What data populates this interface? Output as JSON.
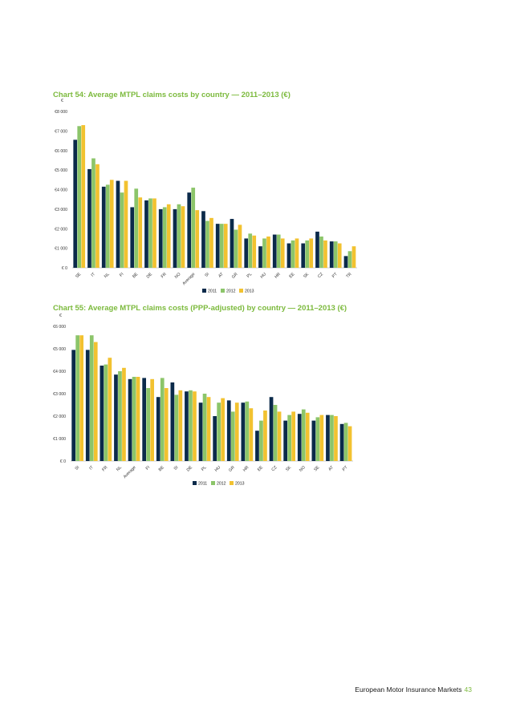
{
  "colors": {
    "y2011": "#0b2a4a",
    "y2012": "#8cc56a",
    "y2013": "#f2c230",
    "title": "#7cba3d"
  },
  "footer": {
    "text": "European Motor Insurance Markets",
    "page": "43"
  },
  "chart_data": [
    {
      "type": "bar",
      "title": "Chart 54: Average MTPL claims costs by country — 2011–2013 (€)",
      "ylabel": "€",
      "ylim": [
        0,
        8000
      ],
      "yticks": [
        0,
        1000,
        2000,
        3000,
        4000,
        5000,
        6000,
        7000,
        8000
      ],
      "ytick_labels": [
        "€ 0",
        "€1 000",
        "€2 000",
        "€3 000",
        "€4 000",
        "€5 000",
        "€6 000",
        "€7 000",
        "€8 000"
      ],
      "categories": [
        "SE",
        "IT",
        "NL",
        "FI",
        "BE",
        "DE",
        "FR",
        "NO",
        "Average",
        "SI",
        "AT",
        "GR",
        "PL",
        "HU",
        "HR",
        "EE",
        "SK",
        "CZ",
        "PT",
        "TR"
      ],
      "series": [
        {
          "name": "2011",
          "values": [
            6550,
            5050,
            4150,
            4450,
            3100,
            3450,
            3000,
            3000,
            3850,
            2900,
            2250,
            2500,
            1500,
            1100,
            1700,
            1250,
            1250,
            1850,
            1350,
            600
          ]
        },
        {
          "name": "2012",
          "values": [
            7250,
            5600,
            4250,
            3850,
            4050,
            3550,
            3100,
            3250,
            4100,
            2400,
            2250,
            1950,
            1750,
            1500,
            1700,
            1400,
            1400,
            1600,
            1350,
            850
          ]
        },
        {
          "name": "2013",
          "values": [
            7300,
            5300,
            4500,
            4450,
            3600,
            3550,
            3250,
            3150,
            2950,
            2550,
            2250,
            2200,
            1650,
            1600,
            1500,
            1500,
            1500,
            1400,
            1250,
            1100
          ]
        }
      ],
      "legend": [
        "2011",
        "2012",
        "2013"
      ],
      "legend_position": "bottom"
    },
    {
      "type": "bar",
      "title": "Chart 55: Average MTPL claims costs (PPP-adjusted) by country — 2011–2013 (€)",
      "ylabel": "€",
      "ylim": [
        0,
        6000
      ],
      "yticks": [
        0,
        1000,
        2000,
        3000,
        4000,
        5000,
        6000
      ],
      "ytick_labels": [
        "€ 0",
        "€1 000",
        "€2 000",
        "€3 000",
        "€4 000",
        "€5 000",
        "€6 000"
      ],
      "categories": [
        "SI",
        "IT",
        "FR",
        "NL",
        "Average",
        "FI",
        "BE",
        "SI",
        "DE",
        "PL",
        "HU",
        "GR",
        "HR",
        "EE",
        "CZ",
        "SK",
        "NO",
        "SE",
        "AT",
        "PT"
      ],
      "series": [
        {
          "name": "2011",
          "values": [
            4950,
            4950,
            4250,
            3850,
            3650,
            3700,
            2850,
            3500,
            3100,
            2600,
            2000,
            2700,
            2600,
            1350,
            2850,
            1800,
            2100,
            1800,
            2050,
            1650
          ]
        },
        {
          "name": "2012",
          "values": [
            5600,
            5600,
            4300,
            4000,
            3750,
            3250,
            3700,
            2950,
            3150,
            3000,
            2600,
            2200,
            2650,
            1800,
            2500,
            2050,
            2300,
            1950,
            2050,
            1700
          ]
        },
        {
          "name": "2013",
          "values": [
            5600,
            5300,
            4600,
            4150,
            3750,
            3650,
            3250,
            3150,
            3100,
            2850,
            2800,
            2600,
            2350,
            2250,
            2200,
            2200,
            2150,
            2050,
            2000,
            1550
          ]
        }
      ],
      "legend": [
        "2011",
        "2012",
        "2013"
      ],
      "legend_position": "bottom"
    }
  ]
}
